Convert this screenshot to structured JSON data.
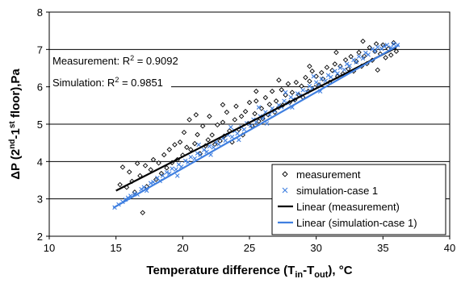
{
  "chart_data": {
    "type": "scatter",
    "xlabel": {
      "base": "Temperature difference (T",
      "sub1": "in",
      "mid": "-T",
      "sub2": "out",
      "end": "), °C"
    },
    "ylabel": {
      "base": "ΔP (2",
      "sup1": "nd",
      "mid": "-1",
      "sup2": "st",
      "end": " floor),Pa"
    },
    "xlim": [
      10,
      40
    ],
    "ylim": [
      2,
      8
    ],
    "xticks": [
      "10",
      "15",
      "20",
      "25",
      "30",
      "35",
      "40"
    ],
    "yticks": [
      "2",
      "3",
      "4",
      "5",
      "6",
      "7",
      "8"
    ],
    "grid": {
      "horizontal": true,
      "vertical": false
    },
    "legend_position": "bottom-right",
    "annotations": {
      "measurement": {
        "label": "Measurement: R",
        "sup": "2",
        "rest": " = 0.9092"
      },
      "simulation": {
        "label": "Simulation: R",
        "sup": "2",
        "rest": " = 0.9851"
      }
    },
    "series": [
      {
        "name": "measurement",
        "marker": "diamond-open",
        "color": "#000000",
        "points": [
          [
            15.3,
            3.38
          ],
          [
            15.5,
            3.85
          ],
          [
            15.8,
            3.31
          ],
          [
            16.0,
            3.72
          ],
          [
            16.2,
            3.47
          ],
          [
            16.4,
            3.18
          ],
          [
            16.6,
            3.95
          ],
          [
            16.8,
            3.62
          ],
          [
            17.0,
            2.63
          ],
          [
            17.2,
            3.89
          ],
          [
            17.3,
            3.33
          ],
          [
            17.6,
            3.78
          ],
          [
            17.8,
            4.05
          ],
          [
            18.0,
            3.52
          ],
          [
            18.2,
            3.96
          ],
          [
            18.4,
            3.68
          ],
          [
            18.6,
            4.18
          ],
          [
            18.8,
            3.83
          ],
          [
            19.0,
            4.32
          ],
          [
            19.2,
            3.97
          ],
          [
            19.4,
            4.45
          ],
          [
            19.6,
            4.05
          ],
          [
            19.8,
            4.52
          ],
          [
            20.0,
            4.17
          ],
          [
            20.1,
            4.78
          ],
          [
            20.3,
            4.38
          ],
          [
            20.5,
            5.12
          ],
          [
            20.6,
            4.32
          ],
          [
            20.9,
            4.48
          ],
          [
            21.1,
            4.72
          ],
          [
            21.3,
            4.21
          ],
          [
            21.5,
            4.95
          ],
          [
            21.7,
            4.42
          ],
          [
            21.9,
            4.58
          ],
          [
            22.0,
            5.21
          ],
          [
            22.2,
            4.71
          ],
          [
            22.4,
            4.46
          ],
          [
            22.6,
            4.98
          ],
          [
            22.8,
            4.55
          ],
          [
            23.0,
            5.05
          ],
          [
            23.1,
            4.68
          ],
          [
            23.3,
            5.32
          ],
          [
            23.5,
            4.82
          ],
          [
            23.7,
            4.52
          ],
          [
            23.9,
            5.12
          ],
          [
            24.0,
            5.48
          ],
          [
            24.2,
            4.86
          ],
          [
            24.4,
            5.21
          ],
          [
            24.5,
            4.71
          ],
          [
            24.7,
            5.34
          ],
          [
            24.9,
            5.02
          ],
          [
            25.0,
            5.58
          ],
          [
            25.2,
            4.95
          ],
          [
            25.4,
            5.28
          ],
          [
            25.5,
            5.62
          ],
          [
            25.7,
            5.08
          ],
          [
            25.9,
            5.42
          ],
          [
            26.0,
            5.15
          ],
          [
            26.2,
            5.71
          ],
          [
            26.4,
            5.25
          ],
          [
            26.5,
            5.53
          ],
          [
            26.7,
            5.88
          ],
          [
            26.9,
            5.32
          ],
          [
            27.0,
            5.62
          ],
          [
            27.2,
            5.45
          ],
          [
            27.4,
            5.92
          ],
          [
            27.5,
            5.51
          ],
          [
            27.7,
            5.78
          ],
          [
            27.9,
            6.08
          ],
          [
            28.0,
            5.58
          ],
          [
            28.2,
            5.85
          ],
          [
            28.4,
            5.65
          ],
          [
            28.5,
            6.12
          ],
          [
            28.7,
            5.78
          ],
          [
            28.9,
            6.02
          ],
          [
            29.0,
            5.72
          ],
          [
            29.2,
            6.25
          ],
          [
            29.4,
            5.88
          ],
          [
            29.5,
            6.15
          ],
          [
            29.7,
            6.42
          ],
          [
            29.9,
            5.98
          ],
          [
            30.0,
            6.28
          ],
          [
            30.2,
            6.05
          ],
          [
            30.4,
            6.38
          ],
          [
            30.5,
            6.21
          ],
          [
            30.8,
            6.52
          ],
          [
            31.0,
            6.12
          ],
          [
            31.2,
            6.44
          ],
          [
            31.4,
            6.61
          ],
          [
            31.6,
            6.28
          ],
          [
            31.8,
            6.55
          ],
          [
            32.0,
            6.35
          ],
          [
            32.2,
            6.72
          ],
          [
            32.4,
            6.48
          ],
          [
            32.6,
            6.81
          ],
          [
            32.8,
            6.42
          ],
          [
            33.0,
            6.68
          ],
          [
            33.2,
            6.92
          ],
          [
            33.4,
            6.55
          ],
          [
            33.6,
            6.82
          ],
          [
            33.8,
            6.62
          ],
          [
            34.0,
            7.05
          ],
          [
            34.2,
            6.71
          ],
          [
            34.4,
            6.95
          ],
          [
            34.6,
            6.45
          ],
          [
            34.8,
            6.88
          ],
          [
            35.0,
            7.12
          ],
          [
            35.2,
            6.78
          ],
          [
            35.4,
            7.02
          ],
          [
            35.6,
            6.85
          ],
          [
            35.8,
            7.18
          ],
          [
            36.0,
            6.95
          ],
          [
            33.5,
            7.22
          ],
          [
            34.5,
            7.15
          ],
          [
            29.5,
            6.55
          ],
          [
            27.2,
            6.18
          ],
          [
            31.5,
            6.92
          ],
          [
            25.5,
            5.88
          ],
          [
            23.0,
            5.52
          ],
          [
            21.0,
            5.25
          ]
        ]
      },
      {
        "name": "simulation-case 1",
        "marker": "x",
        "color": "#3f7fe0",
        "points": [
          [
            14.9,
            2.77
          ],
          [
            15.2,
            2.85
          ],
          [
            15.5,
            2.92
          ],
          [
            15.7,
            2.98
          ],
          [
            15.9,
            3.03
          ],
          [
            16.1,
            3.08
          ],
          [
            16.4,
            3.14
          ],
          [
            16.6,
            3.12
          ],
          [
            16.9,
            3.26
          ],
          [
            17.1,
            3.31
          ],
          [
            17.3,
            3.22
          ],
          [
            17.6,
            3.42
          ],
          [
            17.8,
            3.45
          ],
          [
            18.1,
            3.56
          ],
          [
            18.3,
            3.48
          ],
          [
            18.5,
            3.62
          ],
          [
            18.8,
            3.71
          ],
          [
            19.0,
            3.68
          ],
          [
            19.2,
            3.81
          ],
          [
            19.5,
            3.79
          ],
          [
            19.7,
            3.92
          ],
          [
            19.9,
            3.86
          ],
          [
            20.2,
            4.02
          ],
          [
            20.4,
            3.98
          ],
          [
            20.6,
            4.12
          ],
          [
            20.9,
            4.08
          ],
          [
            21.1,
            4.22
          ],
          [
            21.3,
            4.18
          ],
          [
            21.6,
            4.31
          ],
          [
            21.8,
            4.26
          ],
          [
            22.0,
            4.41
          ],
          [
            22.3,
            4.38
          ],
          [
            22.5,
            4.52
          ],
          [
            22.7,
            4.46
          ],
          [
            23.0,
            4.62
          ],
          [
            23.2,
            4.56
          ],
          [
            23.4,
            4.71
          ],
          [
            23.7,
            4.66
          ],
          [
            23.9,
            4.82
          ],
          [
            24.1,
            4.75
          ],
          [
            24.4,
            4.92
          ],
          [
            24.6,
            4.86
          ],
          [
            24.8,
            5.02
          ],
          [
            25.1,
            4.96
          ],
          [
            25.3,
            5.12
          ],
          [
            25.5,
            5.05
          ],
          [
            25.8,
            5.21
          ],
          [
            26.0,
            5.16
          ],
          [
            26.2,
            5.32
          ],
          [
            26.5,
            5.26
          ],
          [
            26.7,
            5.42
          ],
          [
            26.9,
            5.36
          ],
          [
            27.2,
            5.51
          ],
          [
            27.4,
            5.46
          ],
          [
            27.6,
            5.62
          ],
          [
            27.9,
            5.56
          ],
          [
            28.1,
            5.72
          ],
          [
            28.3,
            5.66
          ],
          [
            28.6,
            5.82
          ],
          [
            28.8,
            5.76
          ],
          [
            29.0,
            5.91
          ],
          [
            29.3,
            5.86
          ],
          [
            29.5,
            6.02
          ],
          [
            29.7,
            5.96
          ],
          [
            30.0,
            6.12
          ],
          [
            30.2,
            6.06
          ],
          [
            30.4,
            6.21
          ],
          [
            30.7,
            6.16
          ],
          [
            30.9,
            6.31
          ],
          [
            31.1,
            6.26
          ],
          [
            31.4,
            6.42
          ],
          [
            31.6,
            6.36
          ],
          [
            31.8,
            6.51
          ],
          [
            32.1,
            6.46
          ],
          [
            32.3,
            6.61
          ],
          [
            32.5,
            6.56
          ],
          [
            32.8,
            6.72
          ],
          [
            33.0,
            6.66
          ],
          [
            33.2,
            6.81
          ],
          [
            33.5,
            6.76
          ],
          [
            33.7,
            6.91
          ],
          [
            33.9,
            6.86
          ],
          [
            34.2,
            7.01
          ],
          [
            34.4,
            6.96
          ],
          [
            34.6,
            7.06
          ],
          [
            34.9,
            7.02
          ],
          [
            35.1,
            7.08
          ],
          [
            35.3,
            7.12
          ],
          [
            35.6,
            7.05
          ],
          [
            35.8,
            7.15
          ],
          [
            36.1,
            7.12
          ],
          [
            22.1,
            4.18
          ],
          [
            24.2,
            4.58
          ],
          [
            26.3,
            5.02
          ],
          [
            28.2,
            5.45
          ],
          [
            30.3,
            5.88
          ],
          [
            19.6,
            3.62
          ],
          [
            21.2,
            4.45
          ],
          [
            23.6,
            4.92
          ],
          [
            25.7,
            5.45
          ],
          [
            27.7,
            5.85
          ],
          [
            29.8,
            6.28
          ]
        ]
      },
      {
        "name": "Linear (measurement)",
        "type": "line",
        "color": "#000000",
        "x": [
          15,
          36
        ],
        "y": [
          3.22,
          7.05
        ]
      },
      {
        "name": "Linear (simulation-case 1)",
        "type": "line",
        "color": "#3f7fe0",
        "x": [
          14.8,
          36.2
        ],
        "y": [
          2.76,
          7.12
        ]
      }
    ]
  }
}
